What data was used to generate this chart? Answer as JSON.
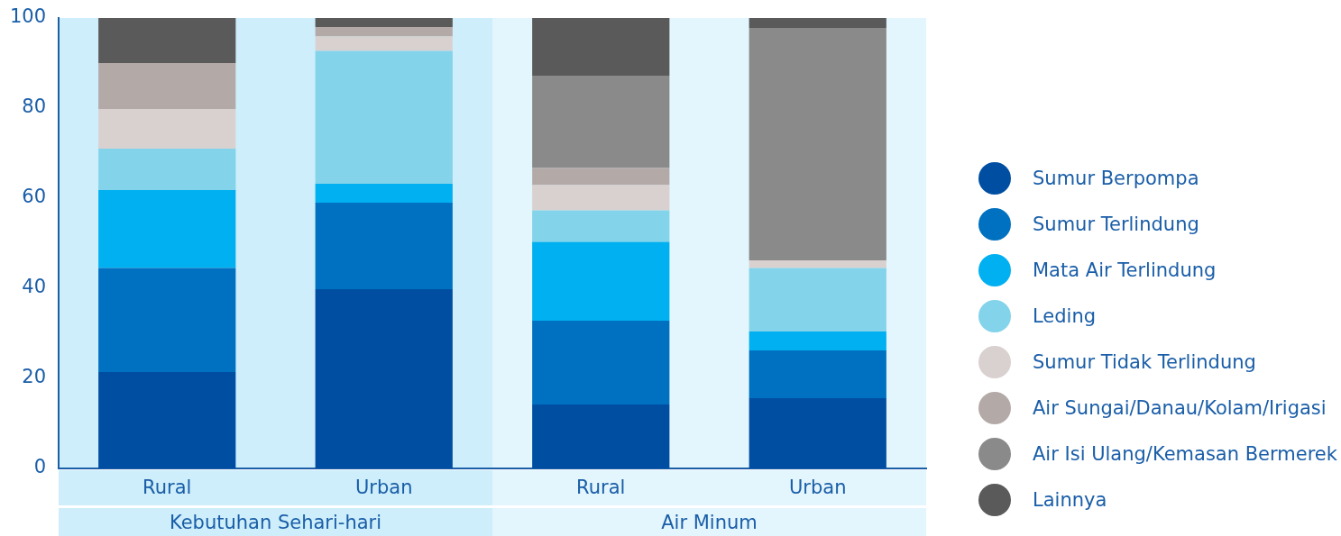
{
  "chart_data": {
    "type": "bar",
    "stacked": true,
    "categories": [
      "Rural",
      "Urban",
      "Rural",
      "Urban"
    ],
    "series": [
      {
        "name": "Sumur Berpompa",
        "color": "#004ea2",
        "values": [
          21.4,
          39.8,
          14.2,
          15.6
        ]
      },
      {
        "name": "Sumur Terlindung",
        "color": "#0071c0",
        "values": [
          23.1,
          19.2,
          18.6,
          10.6
        ]
      },
      {
        "name": "Mata Air Terlindung",
        "color": "#00b0f0",
        "values": [
          17.3,
          4.2,
          17.5,
          4.2
        ]
      },
      {
        "name": "Leding",
        "color": "#83d3ea",
        "values": [
          9.2,
          29.5,
          7.0,
          14.1
        ]
      },
      {
        "name": "Sumur Tidak Terlindung",
        "color": "#d9d1d0",
        "values": [
          8.8,
          3.2,
          5.6,
          1.7
        ]
      },
      {
        "name": "Air Sungai/Danau/Kolam/Irigasi",
        "color": "#b3aaa8",
        "values": [
          10.2,
          2.1,
          3.8,
          0
        ]
      },
      {
        "name": "Air Isi Ulang/Kemasan Bermerek",
        "color": "#8a8a8a",
        "values": [
          0,
          0,
          20.5,
          51.6
        ]
      },
      {
        "name": "Lainnya",
        "color": "#5a5a5a",
        "values": [
          10.0,
          2.0,
          12.8,
          2.2
        ]
      }
    ],
    "annotations": [
      "Kebutuhan Sehari-hari",
      "Air Minum"
    ],
    "ylim": [
      0,
      100
    ],
    "yticks": [
      0,
      20,
      40,
      60,
      80,
      100
    ],
    "grid": false,
    "legend": "right"
  }
}
